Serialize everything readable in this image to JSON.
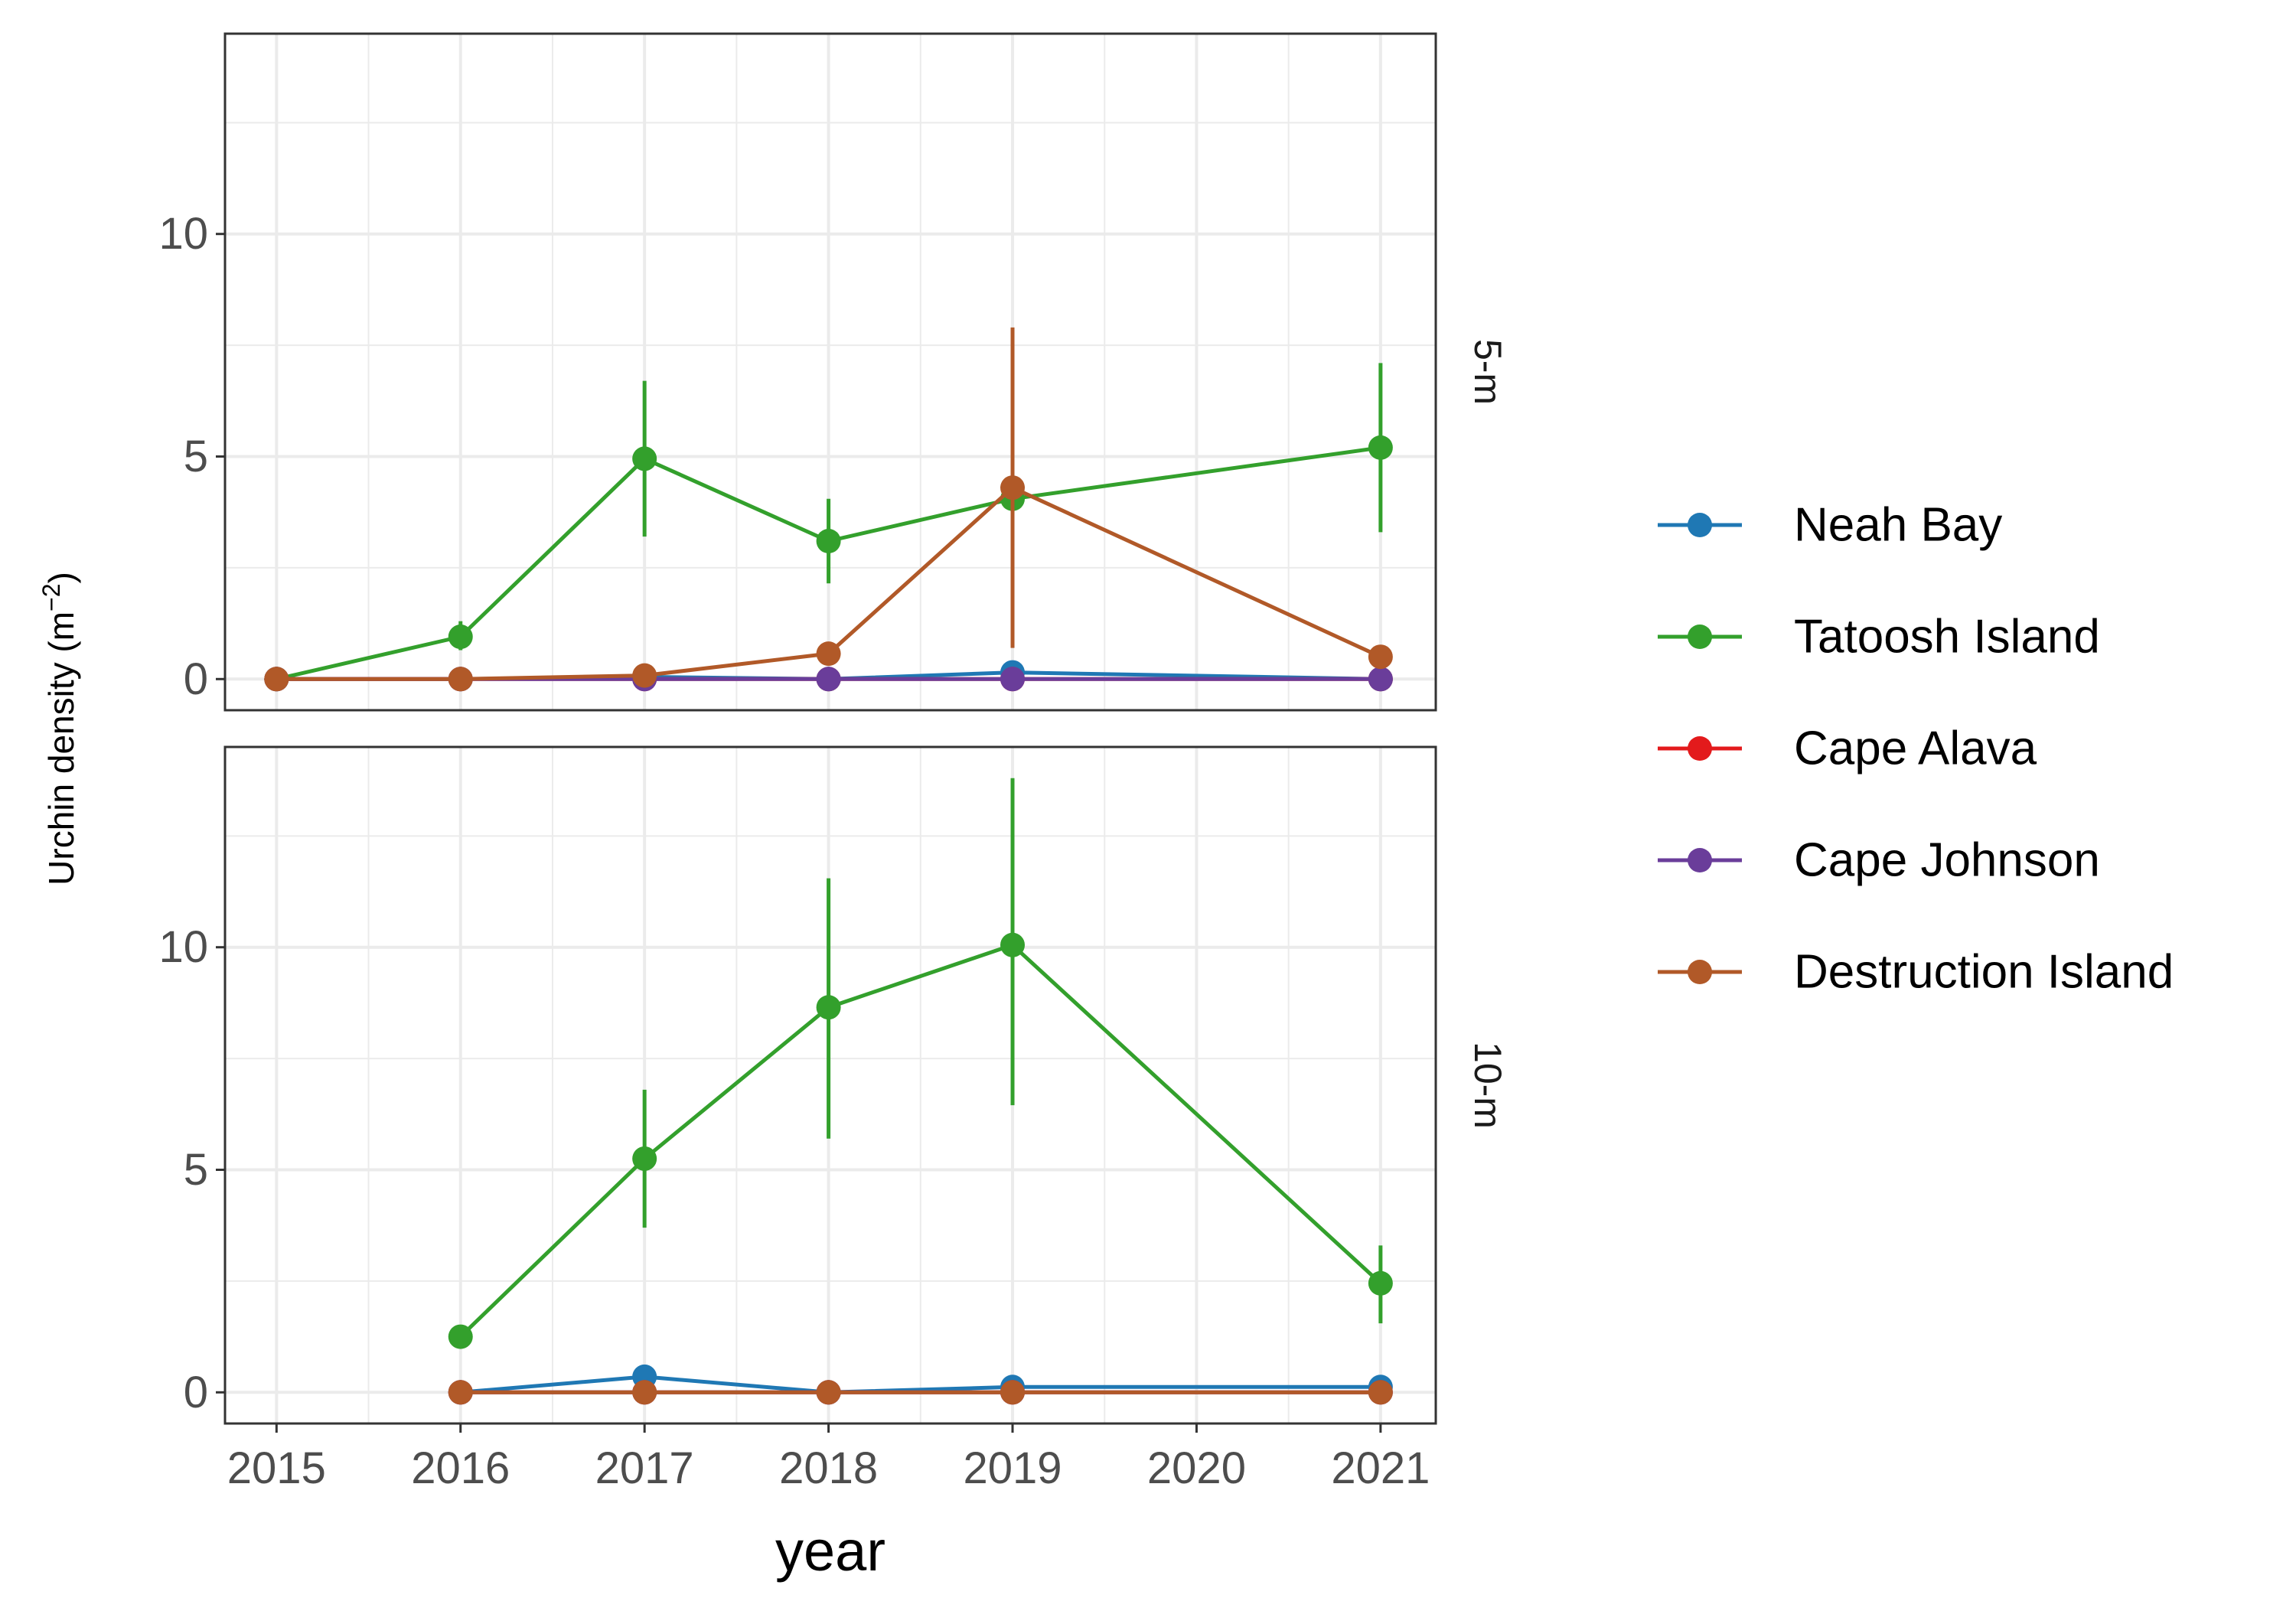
{
  "chart_data": {
    "type": "line",
    "xlabel": "year",
    "ylabel": "Urchin density (m",
    "ylabel_superscript": "−2",
    "ylabel_suffix": ")",
    "xlim": [
      2014.72,
      2021.3
    ],
    "ylim": [
      -0.7,
      14.5
    ],
    "x_ticks": [
      2015,
      2016,
      2017,
      2018,
      2019,
      2020,
      2021
    ],
    "x_tick_labels": [
      "2015",
      "2016",
      "2017",
      "2018",
      "2019",
      "2020",
      "2021"
    ],
    "y_ticks": [
      0,
      5,
      10
    ],
    "y_tick_labels": [
      "0",
      "5",
      "10"
    ],
    "grid": true,
    "legend_position": "right",
    "legend": [
      "Neah Bay",
      "Tatoosh Island",
      "Cape Alava",
      "Cape Johnson",
      "Destruction Island"
    ],
    "colors": {
      "Neah Bay": "#1f78b4",
      "Tatoosh Island": "#33a02c",
      "Cape Alava": "#e31a1c",
      "Cape Johnson": "#6a3d9a",
      "Destruction Island": "#b15928"
    },
    "panels": [
      {
        "facet": "5-m",
        "series": [
          {
            "name": "Neah Bay",
            "x": [
              2015,
              2016,
              2017,
              2018,
              2019,
              2021
            ],
            "y": [
              0,
              0,
              0.05,
              0,
              0.15,
              0
            ],
            "err_low": [
              0,
              0,
              0,
              0,
              0.05,
              0
            ],
            "err_high": [
              0,
              0,
              0.1,
              0,
              0.25,
              0
            ]
          },
          {
            "name": "Tatoosh Island",
            "x": [
              2015,
              2016,
              2017,
              2018,
              2019,
              2021
            ],
            "y": [
              0,
              0.95,
              4.95,
              3.1,
              4.05,
              5.2
            ],
            "err_low": [
              0,
              0.65,
              3.2,
              2.15,
              4.05,
              3.3
            ],
            "err_high": [
              0,
              1.3,
              6.7,
              4.05,
              4.05,
              7.1
            ]
          },
          {
            "name": "Cape Alava",
            "x": [
              2015,
              2016,
              2017,
              2018,
              2019,
              2021
            ],
            "y": [
              0,
              0,
              0,
              0,
              0,
              0
            ],
            "err_low": [
              0,
              0,
              0,
              0,
              0,
              0
            ],
            "err_high": [
              0,
              0,
              0,
              0,
              0,
              0
            ]
          },
          {
            "name": "Cape Johnson",
            "x": [
              2015,
              2016,
              2017,
              2018,
              2019,
              2021
            ],
            "y": [
              0,
              0,
              0,
              0,
              0,
              0
            ],
            "err_low": [
              0,
              0,
              0,
              0,
              0,
              0
            ],
            "err_high": [
              0,
              0,
              0,
              0,
              0,
              0
            ]
          },
          {
            "name": "Destruction Island",
            "x": [
              2015,
              2016,
              2017,
              2018,
              2019,
              2021
            ],
            "y": [
              0,
              0,
              0.08,
              0.57,
              4.3,
              0.5
            ],
            "err_low": [
              0,
              0,
              0.02,
              0.57,
              0.7,
              0.5
            ],
            "err_high": [
              0,
              0,
              0.15,
              0.57,
              7.9,
              0.5
            ]
          }
        ]
      },
      {
        "facet": "10-m",
        "series": [
          {
            "name": "Neah Bay",
            "x": [
              2016,
              2017,
              2018,
              2019,
              2021
            ],
            "y": [
              0,
              0.35,
              0,
              0.12,
              0.12
            ],
            "err_low": [
              0,
              0.25,
              0,
              0.05,
              0.05
            ],
            "err_high": [
              0,
              0.45,
              0,
              0.2,
              0.2
            ]
          },
          {
            "name": "Tatoosh Island",
            "x": [
              2016,
              2017,
              2018,
              2019,
              2021
            ],
            "y": [
              1.25,
              5.25,
              8.65,
              10.05,
              2.45
            ],
            "err_low": [
              1.1,
              3.7,
              5.7,
              6.45,
              1.55
            ],
            "err_high": [
              1.4,
              6.8,
              11.55,
              13.8,
              3.3
            ]
          },
          {
            "name": "Cape Alava",
            "x": [
              2016,
              2017,
              2018,
              2019,
              2021
            ],
            "y": [
              0,
              0,
              0,
              0,
              0
            ],
            "err_low": [
              0,
              0,
              0,
              0,
              0
            ],
            "err_high": [
              0,
              0,
              0,
              0,
              0
            ]
          },
          {
            "name": "Cape Johnson",
            "x": [
              2016,
              2017,
              2018,
              2019,
              2021
            ],
            "y": [
              0,
              0,
              0,
              0,
              0
            ],
            "err_low": [
              0,
              0,
              0,
              0,
              0
            ],
            "err_high": [
              0,
              0,
              0,
              0,
              0
            ]
          },
          {
            "name": "Destruction Island",
            "x": [
              2016,
              2017,
              2018,
              2019,
              2021
            ],
            "y": [
              0,
              0,
              0,
              0,
              0
            ],
            "err_low": [
              0,
              0,
              0,
              0,
              0
            ],
            "err_high": [
              0,
              0,
              0,
              0,
              0
            ]
          }
        ]
      }
    ]
  }
}
